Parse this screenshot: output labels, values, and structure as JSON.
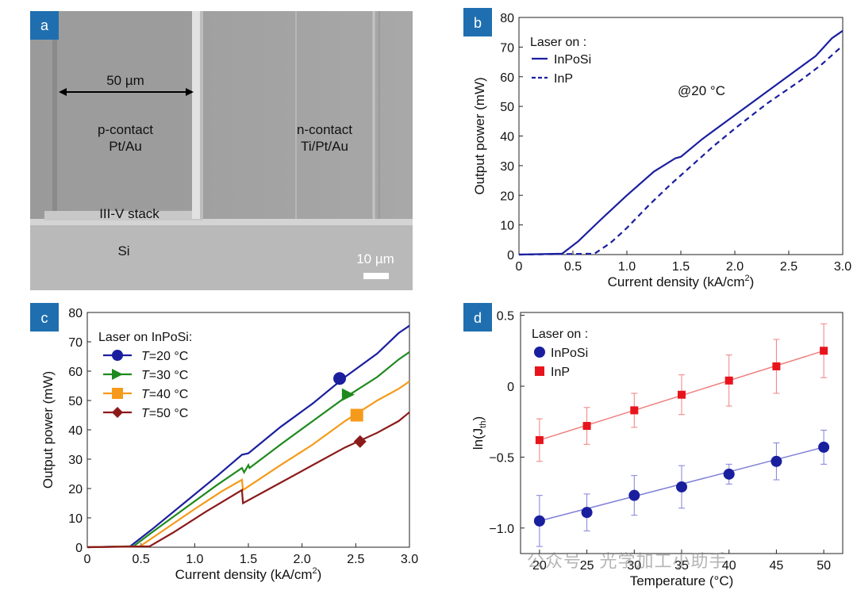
{
  "panel_a": {
    "badge": "a",
    "scale_label": "50 µm",
    "p_contact": "p-contact",
    "p_metal": "Pt/Au",
    "n_contact": "n-contact",
    "n_metal": "Ti/Pt/Au",
    "stack": "III-V stack",
    "substrate": "Si",
    "scale_bar": "10 µm"
  },
  "chart_data": [
    {
      "id": "b",
      "type": "line",
      "badge": "b",
      "xlabel": "Current density (kA/cm",
      "xlabel_sup": "2",
      "xlabel_end": ")",
      "ylabel": "Output power (mW)",
      "xlim": [
        0,
        3.0
      ],
      "ylim": [
        0,
        80
      ],
      "xticks": [
        "0",
        "0.5",
        "1.0",
        "1.5",
        "2.0",
        "2.5",
        "3.0"
      ],
      "yticks": [
        "0",
        "10",
        "20",
        "30",
        "40",
        "50",
        "60",
        "70",
        "80"
      ],
      "legend_title": "Laser on :",
      "annotation": "@20 °C",
      "series": [
        {
          "name": "InPoSi",
          "color": "#1a1f9e",
          "style": "solid",
          "x": [
            0,
            0.4,
            0.55,
            0.75,
            1.0,
            1.25,
            1.45,
            1.5,
            1.7,
            2.0,
            2.3,
            2.6,
            2.75,
            2.9,
            3.0
          ],
          "y": [
            0,
            0.3,
            4.5,
            11.5,
            20,
            28,
            32.5,
            33,
            39,
            47,
            55,
            63,
            67,
            73,
            75.5
          ]
        },
        {
          "name": "InP",
          "color": "#1a1f9e",
          "style": "dashed",
          "x": [
            0,
            0.7,
            0.85,
            1.0,
            1.2,
            1.4,
            1.6,
            1.8,
            2.0,
            2.3,
            2.6,
            2.8,
            3.0
          ],
          "y": [
            0,
            0.3,
            4,
            9,
            16.5,
            23.5,
            30,
            36.5,
            42.5,
            51,
            58.5,
            64,
            70.5
          ]
        }
      ]
    },
    {
      "id": "c",
      "type": "line",
      "badge": "c",
      "xlabel": "Current density (kA/cm",
      "xlabel_sup": "2",
      "xlabel_end": ")",
      "ylabel": "Output power (mW)",
      "xlim": [
        0,
        3.0
      ],
      "ylim": [
        0,
        80
      ],
      "xticks": [
        "0",
        "0.5",
        "1.0",
        "1.5",
        "2.0",
        "2.5",
        "3.0"
      ],
      "yticks": [
        "0",
        "10",
        "20",
        "30",
        "40",
        "50",
        "60",
        "70",
        "80"
      ],
      "legend_title": "Laser on InPoSi:",
      "series": [
        {
          "name_italic": "T",
          "name": "=20 °C",
          "color": "#1a1f9e",
          "marker": "circle",
          "marker_x": 2.35,
          "marker_y": 57.5,
          "x": [
            0,
            0.4,
            0.6,
            0.9,
            1.2,
            1.44,
            1.5,
            1.8,
            2.1,
            2.4,
            2.7,
            2.9,
            3.0
          ],
          "y": [
            0,
            0.3,
            6,
            15,
            24,
            31.5,
            32,
            41,
            49,
            58,
            66,
            73,
            75.5
          ]
        },
        {
          "name_italic": "T",
          "name": "=30 °C",
          "color": "#1e8a1e",
          "marker": "triangle",
          "marker_x": 2.43,
          "marker_y": 52,
          "x": [
            0,
            0.43,
            0.6,
            0.9,
            1.2,
            1.44,
            1.46,
            1.5,
            1.51,
            1.8,
            2.1,
            2.4,
            2.7,
            2.9,
            3.0
          ],
          "y": [
            0,
            0.3,
            5,
            13,
            21,
            27,
            25.5,
            28,
            27,
            35,
            43,
            51,
            58,
            64,
            66.5
          ]
        },
        {
          "name_italic": "T",
          "name": "=40 °C",
          "color": "#f59a1a",
          "marker": "square",
          "marker_x": 2.51,
          "marker_y": 45,
          "x": [
            0,
            0.49,
            0.7,
            1.0,
            1.25,
            1.44,
            1.45,
            1.8,
            2.1,
            2.4,
            2.7,
            2.9,
            3.0
          ],
          "y": [
            0,
            0.3,
            5.5,
            13,
            19,
            23,
            19.5,
            28,
            35,
            43,
            50,
            54,
            56.5
          ]
        },
        {
          "name_italic": "T",
          "name": "=50 °C",
          "color": "#8b1a1a",
          "marker": "diamond",
          "marker_x": 2.54,
          "marker_y": 36,
          "x": [
            0,
            0.58,
            0.8,
            1.1,
            1.44,
            1.45,
            1.8,
            2.1,
            2.4,
            2.7,
            2.9,
            3.0
          ],
          "y": [
            0,
            0.3,
            5,
            12,
            19.5,
            15,
            22,
            28,
            34,
            39,
            43,
            46
          ]
        }
      ]
    },
    {
      "id": "d",
      "type": "scatter",
      "badge": "d",
      "xlabel": "Temperature (°C)",
      "ylabel": "ln(J",
      "ylabel_sub": "th",
      "ylabel_end": ")",
      "xlim": [
        18,
        52
      ],
      "ylim": [
        -1.18,
        0.52
      ],
      "xticks": [
        "20",
        "25",
        "30",
        "35",
        "40",
        "45",
        "50"
      ],
      "xtick_values": [
        20,
        25,
        30,
        35,
        40,
        45,
        50
      ],
      "yticks": [
        "−1.0",
        "−0.5",
        "0",
        "0.5"
      ],
      "ytick_values": [
        -1.0,
        -0.5,
        0,
        0.5
      ],
      "legend_title": "Laser on :",
      "series": [
        {
          "name": "InPoSi",
          "color": "#1a1f9e",
          "fit_color": "#8080d8",
          "marker": "circle",
          "x": [
            20,
            25,
            30,
            35,
            40,
            45,
            50
          ],
          "y": [
            -0.95,
            -0.89,
            -0.77,
            -0.71,
            -0.62,
            -0.53,
            -0.43
          ],
          "err": [
            0.18,
            0.13,
            0.14,
            0.15,
            0.07,
            0.13,
            0.12
          ]
        },
        {
          "name": "InP",
          "color": "#e8141c",
          "fit_color": "#f08080",
          "marker": "square",
          "x": [
            20,
            25,
            30,
            35,
            40,
            45,
            50
          ],
          "y": [
            -0.38,
            -0.28,
            -0.17,
            -0.06,
            0.04,
            0.14,
            0.25
          ],
          "err": [
            0.15,
            0.13,
            0.12,
            0.14,
            0.18,
            0.19,
            0.19
          ]
        }
      ]
    }
  ],
  "watermark": "公众号 · 光学加工小助手"
}
